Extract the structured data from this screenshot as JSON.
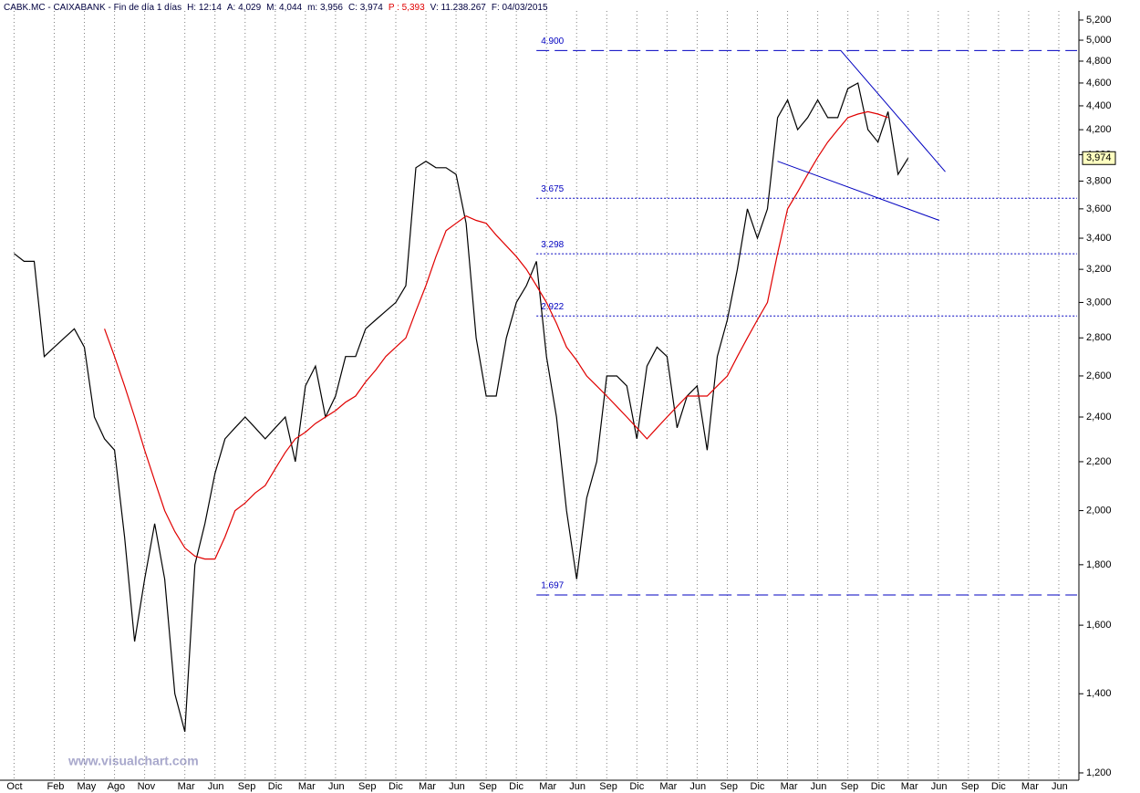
{
  "chart_data": {
    "type": "line",
    "header": [
      {
        "text": "CABK.MC - CAIXABANK - Fin de día 1 días",
        "color": "#000040"
      },
      {
        "text": "H: 12:14",
        "color": "#000040"
      },
      {
        "text": "A: 4,029",
        "color": "#000040"
      },
      {
        "text": "M: 4,044",
        "color": "#000040"
      },
      {
        "text": "m: 3,956",
        "color": "#000040"
      },
      {
        "text": "C: 3,974",
        "color": "#000040"
      },
      {
        "text": "P : 5,393",
        "color": "#e00000"
      },
      {
        "text": "V: 11.238.267",
        "color": "#000040"
      },
      {
        "text": "F: 04/03/2015",
        "color": "#000040"
      }
    ],
    "watermark": "www.visualchart.com",
    "log_scale": true,
    "x": [
      0,
      1,
      2,
      3,
      4,
      5,
      6,
      7,
      8,
      9,
      10,
      11,
      12,
      13,
      14,
      15,
      16,
      17,
      18,
      19,
      20,
      21,
      22,
      23,
      24,
      25,
      26,
      27,
      28,
      29,
      30,
      31,
      32,
      33,
      34,
      35,
      36,
      37,
      38,
      39,
      40,
      41,
      42,
      43,
      44,
      45,
      46,
      47,
      48,
      49,
      50,
      51,
      52,
      53,
      54,
      55,
      56,
      57,
      58,
      59,
      60,
      61,
      62,
      63,
      64,
      65,
      66,
      67,
      68,
      69,
      70,
      71,
      72,
      73,
      74,
      75,
      76,
      77,
      78,
      79,
      80,
      81,
      82,
      83,
      84,
      85,
      86,
      87,
      88,
      89
    ],
    "series": [
      {
        "name": "CABK.MC",
        "color": "#000000",
        "values": [
          3.3,
          3.25,
          3.25,
          2.7,
          2.75,
          2.8,
          2.85,
          2.75,
          2.4,
          2.3,
          2.25,
          1.9,
          1.55,
          1.75,
          1.95,
          1.75,
          1.4,
          1.3,
          1.8,
          1.95,
          2.15,
          2.3,
          2.35,
          2.4,
          2.35,
          2.3,
          2.35,
          2.4,
          2.2,
          2.55,
          2.65,
          2.4,
          2.5,
          2.7,
          2.7,
          2.85,
          2.9,
          2.95,
          3.0,
          3.1,
          3.9,
          3.95,
          3.9,
          3.9,
          3.85,
          3.5,
          2.8,
          2.5,
          2.5,
          2.8,
          3.0,
          3.1,
          3.25,
          2.7,
          2.4,
          2.0,
          1.75,
          2.05,
          2.2,
          2.6,
          2.6,
          2.55,
          2.3,
          2.65,
          2.75,
          2.7,
          2.35,
          2.5,
          2.55,
          2.25,
          2.7,
          2.9,
          3.2,
          3.6,
          3.4,
          3.6,
          4.3,
          4.45,
          4.2,
          4.3,
          4.45,
          4.3,
          4.3,
          4.55,
          4.6,
          4.2,
          4.1,
          4.35,
          3.85,
          3.974
        ]
      },
      {
        "name": "Media",
        "color": "#e00000",
        "values": [
          null,
          null,
          null,
          null,
          null,
          null,
          null,
          null,
          null,
          2.85,
          2.7,
          2.55,
          2.4,
          2.25,
          2.12,
          2.0,
          1.92,
          1.86,
          1.83,
          1.82,
          1.82,
          1.9,
          2.0,
          2.03,
          2.07,
          2.1,
          2.17,
          2.24,
          2.3,
          2.33,
          2.37,
          2.4,
          2.43,
          2.47,
          2.5,
          2.57,
          2.63,
          2.7,
          2.75,
          2.8,
          2.95,
          3.1,
          3.28,
          3.45,
          3.5,
          3.55,
          3.52,
          3.5,
          3.42,
          3.35,
          3.28,
          3.2,
          3.1,
          3.0,
          2.88,
          2.75,
          2.68,
          2.6,
          2.55,
          2.5,
          2.45,
          2.4,
          2.35,
          2.3,
          2.35,
          2.4,
          2.45,
          2.5,
          2.5,
          2.5,
          2.55,
          2.6,
          2.7,
          2.8,
          2.9,
          3.0,
          3.3,
          3.6,
          3.72,
          3.85,
          3.98,
          4.1,
          4.2,
          4.3,
          4.33,
          4.35,
          4.33,
          4.3,
          null,
          null
        ]
      }
    ],
    "xlim": [
      -1.4,
      106
    ],
    "xticks": [
      {
        "value": 0,
        "label": "Oct"
      },
      {
        "value": 4,
        "label": "Feb"
      },
      {
        "value": 7,
        "label": "May"
      },
      {
        "value": 10,
        "label": "Ago"
      },
      {
        "value": 13,
        "label": "Nov"
      },
      {
        "value": 17,
        "label": "Mar"
      },
      {
        "value": 20,
        "label": "Jun"
      },
      {
        "value": 23,
        "label": "Sep"
      },
      {
        "value": 26,
        "label": "Dic"
      },
      {
        "value": 29,
        "label": "Mar"
      },
      {
        "value": 32,
        "label": "Jun"
      },
      {
        "value": 35,
        "label": "Sep"
      },
      {
        "value": 38,
        "label": "Dic"
      },
      {
        "value": 41,
        "label": "Mar"
      },
      {
        "value": 44,
        "label": "Jun"
      },
      {
        "value": 47,
        "label": "Sep"
      },
      {
        "value": 50,
        "label": "Dic"
      },
      {
        "value": 53,
        "label": "Mar"
      },
      {
        "value": 56,
        "label": "Jun"
      },
      {
        "value": 59,
        "label": "Sep"
      },
      {
        "value": 62,
        "label": "Dic"
      },
      {
        "value": 65,
        "label": "Mar"
      },
      {
        "value": 68,
        "label": "Jun"
      },
      {
        "value": 71,
        "label": "Sep"
      },
      {
        "value": 74,
        "label": "Dic"
      },
      {
        "value": 77,
        "label": "Mar"
      },
      {
        "value": 80,
        "label": "Jun"
      },
      {
        "value": 83,
        "label": "Sep"
      },
      {
        "value": 86,
        "label": "Dic"
      },
      {
        "value": 89,
        "label": "Mar"
      },
      {
        "value": 92,
        "label": "Jun"
      },
      {
        "value": 95,
        "label": "Sep"
      },
      {
        "value": 98,
        "label": "Dic"
      },
      {
        "value": 101,
        "label": "Mar"
      },
      {
        "value": 104,
        "label": "Jun"
      }
    ],
    "ylim": [
      1.183,
      5.293
    ],
    "yticks": [
      {
        "value": 1.2,
        "label": "1,200"
      },
      {
        "value": 1.4,
        "label": "1,400"
      },
      {
        "value": 1.6,
        "label": "1,600"
      },
      {
        "value": 1.8,
        "label": "1,800"
      },
      {
        "value": 2.0,
        "label": "2,000"
      },
      {
        "value": 2.2,
        "label": "2,200"
      },
      {
        "value": 2.4,
        "label": "2,400"
      },
      {
        "value": 2.6,
        "label": "2,600"
      },
      {
        "value": 2.8,
        "label": "2,800"
      },
      {
        "value": 3.0,
        "label": "3,000"
      },
      {
        "value": 3.2,
        "label": "3,200"
      },
      {
        "value": 3.4,
        "label": "3,400"
      },
      {
        "value": 3.6,
        "label": "3,600"
      },
      {
        "value": 3.8,
        "label": "3,800"
      },
      {
        "value": 4.0,
        "label": "4,000"
      },
      {
        "value": 4.2,
        "label": "4,200"
      },
      {
        "value": 4.4,
        "label": "4,400"
      },
      {
        "value": 4.6,
        "label": "4,600"
      },
      {
        "value": 4.8,
        "label": "4,800"
      },
      {
        "value": 5.0,
        "label": "5,000"
      },
      {
        "value": 5.2,
        "label": "5,200"
      }
    ],
    "last_price": {
      "value": 3.974,
      "label": "3,974"
    },
    "levels": [
      {
        "value": 4.9,
        "label": "4.900",
        "style": "dashed"
      },
      {
        "value": 3.675,
        "label": "3.675",
        "style": "dotted"
      },
      {
        "value": 3.298,
        "label": "3.298",
        "style": "dotted"
      },
      {
        "value": 2.922,
        "label": "2.922",
        "style": "dotted"
      },
      {
        "value": 1.697,
        "label": "1.697",
        "style": "dashed"
      }
    ],
    "levels_start": 52,
    "trendlines": [
      {
        "x": [
          82.3,
          92.7
        ],
        "y": [
          4.9,
          3.87
        ],
        "color": "#0000c0"
      },
      {
        "x": [
          76.0,
          92.1
        ],
        "y": [
          3.95,
          3.52
        ],
        "color": "#0000c0"
      }
    ],
    "grid": true
  }
}
